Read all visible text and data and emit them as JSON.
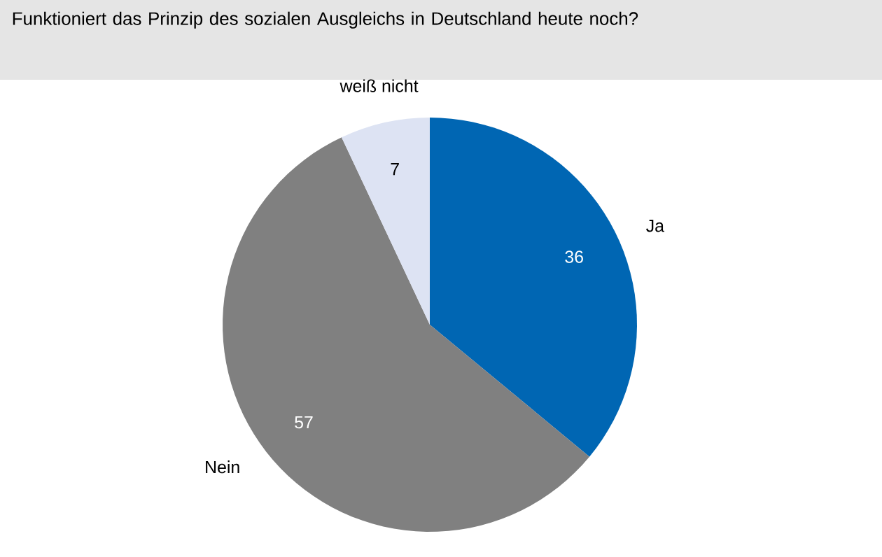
{
  "chart_data": {
    "type": "pie",
    "title": "Funktioniert das Prinzip des sozialen Ausgleichs in Deutschland heute noch?",
    "categories": [
      "Ja",
      "Nein",
      "weiß nicht"
    ],
    "values": [
      36,
      57,
      7
    ],
    "colors": [
      "#0066b3",
      "#808080",
      "#dde3f3"
    ],
    "data_labels": true
  }
}
